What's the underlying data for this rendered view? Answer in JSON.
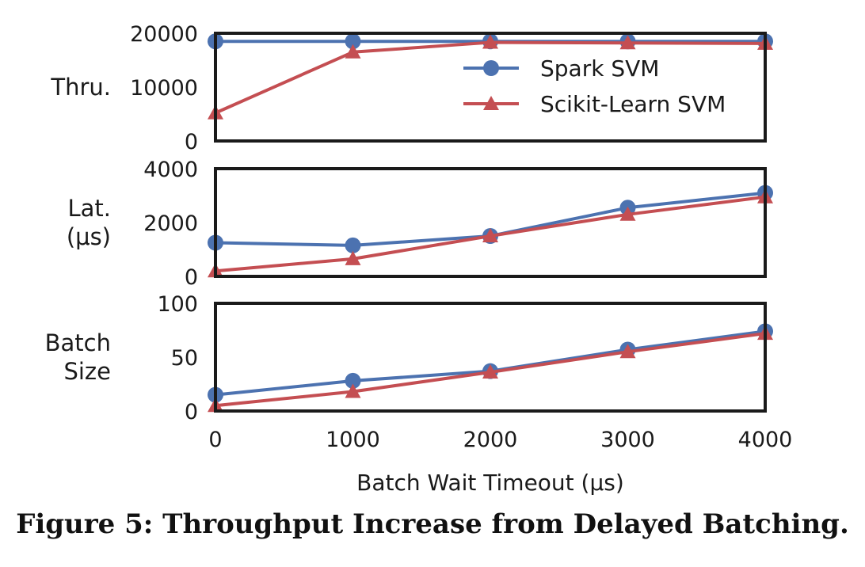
{
  "caption": "Figure 5: Throughput Increase from Delayed Batching.",
  "colors": {
    "spark": "#4c72b0",
    "scikit": "#c44e52",
    "frame": "#1a1a1a"
  },
  "legend": {
    "placement": "upper-right of top panel",
    "entries": [
      "Spark SVM",
      "Scikit-Learn SVM"
    ]
  },
  "chart_data": [
    {
      "type": "line",
      "ylabel_lines": [
        "Thru."
      ],
      "ylim": [
        0,
        20000
      ],
      "yticks": [
        "0",
        "10000",
        "20000"
      ],
      "xlim": [
        0,
        4000
      ],
      "x": [
        0,
        1000,
        2000,
        3000,
        4000
      ],
      "series": [
        {
          "name": "Spark SVM",
          "marker": "circle",
          "values": [
            18500,
            18500,
            18500,
            18500,
            18500
          ]
        },
        {
          "name": "Scikit-Learn SVM",
          "marker": "triangle",
          "values": [
            5200,
            16500,
            18300,
            18200,
            18100
          ]
        }
      ]
    },
    {
      "type": "line",
      "ylabel_lines": [
        "Lat.",
        "(μs)"
      ],
      "ylim": [
        0,
        4000
      ],
      "yticks": [
        "0",
        "2000",
        "4000"
      ],
      "xlim": [
        0,
        4000
      ],
      "x": [
        0,
        1000,
        2000,
        3000,
        4000
      ],
      "series": [
        {
          "name": "Spark SVM",
          "marker": "circle",
          "values": [
            1250,
            1150,
            1500,
            2550,
            3100
          ]
        },
        {
          "name": "Scikit-Learn SVM",
          "marker": "triangle",
          "values": [
            200,
            650,
            1500,
            2300,
            2950
          ]
        }
      ]
    },
    {
      "type": "line",
      "ylabel_lines": [
        "Batch",
        "Size"
      ],
      "ylim": [
        0,
        100
      ],
      "yticks": [
        "0",
        "50",
        "100"
      ],
      "xlim": [
        0,
        4000
      ],
      "x": [
        0,
        1000,
        2000,
        3000,
        4000
      ],
      "xticks": [
        "0",
        "1000",
        "2000",
        "3000",
        "4000"
      ],
      "xlabel": "Batch Wait Timeout (μs)",
      "series": [
        {
          "name": "Spark SVM",
          "marker": "circle",
          "values": [
            15,
            28,
            37,
            57,
            74
          ]
        },
        {
          "name": "Scikit-Learn SVM",
          "marker": "triangle",
          "values": [
            5,
            18,
            36,
            55,
            72
          ]
        }
      ]
    }
  ]
}
